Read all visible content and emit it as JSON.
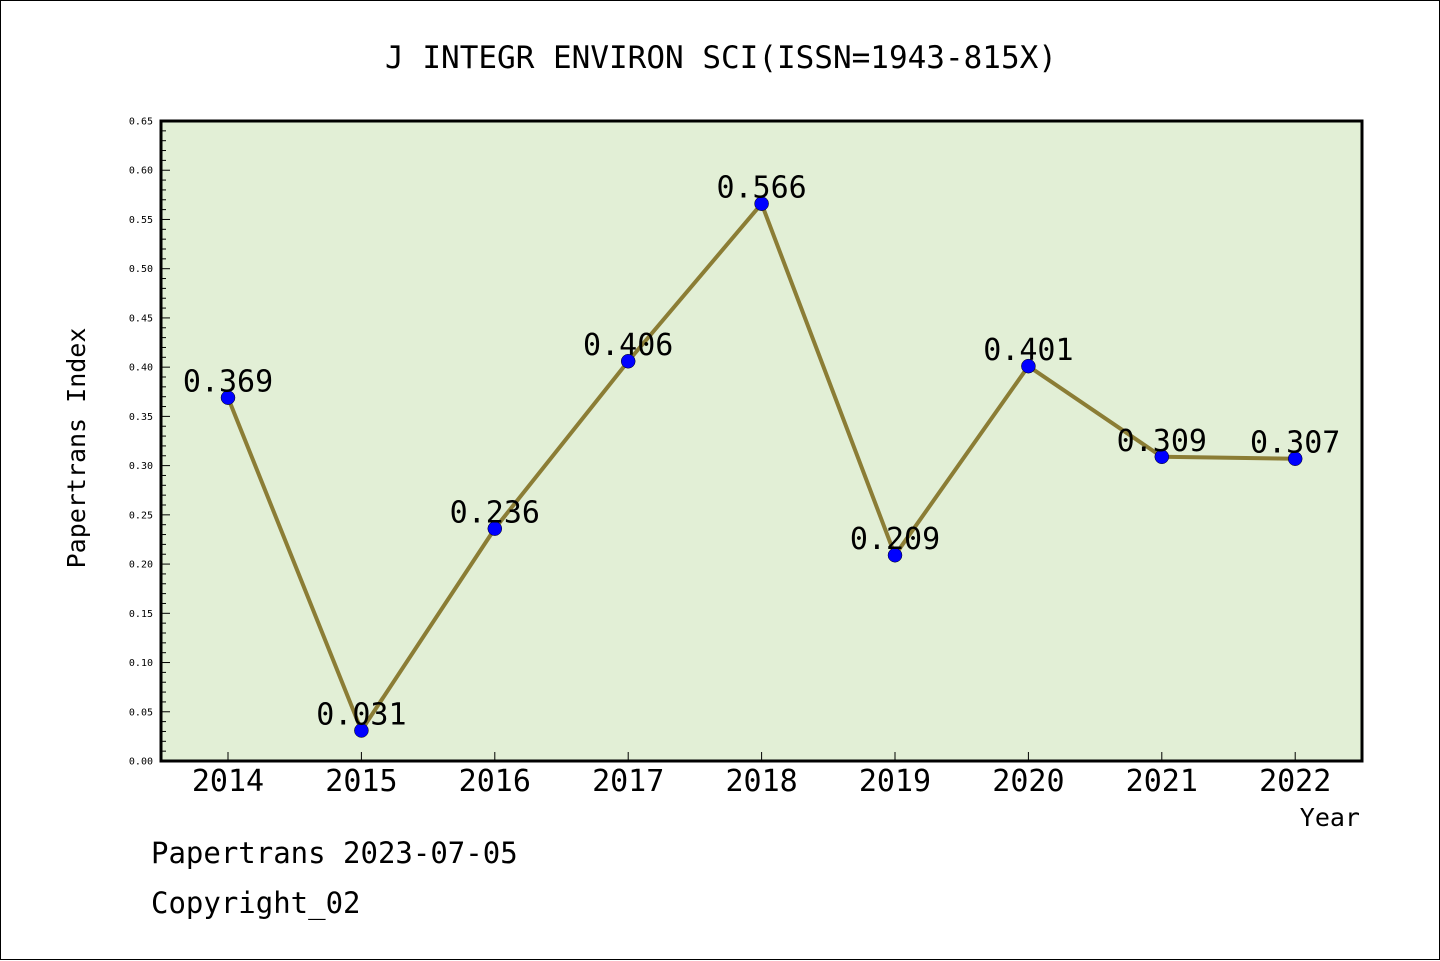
{
  "chart_data": {
    "type": "line",
    "title": "J INTEGR ENVIRON SCI(ISSN=1943-815X)",
    "xlabel": "Year",
    "ylabel": "Papertrans Index",
    "categories": [
      "2014",
      "2015",
      "2016",
      "2017",
      "2018",
      "2019",
      "2020",
      "2021",
      "2022"
    ],
    "values": [
      0.369,
      0.031,
      0.236,
      0.406,
      0.566,
      0.209,
      0.401,
      0.309,
      0.307
    ],
    "value_labels": [
      "0.369",
      "0.031",
      "0.236",
      "0.406",
      "0.566",
      "0.209",
      "0.401",
      "0.309",
      "0.307"
    ],
    "ylim": [
      0,
      0.65
    ],
    "yticks": [
      "0.00",
      "0.05",
      "0.10",
      "0.15",
      "0.20",
      "0.25",
      "0.30",
      "0.35",
      "0.40",
      "0.45",
      "0.50",
      "0.55",
      "0.60",
      "0.65"
    ],
    "grid": false,
    "colors": {
      "plot_background": "#e2efd6",
      "line": "#8b7d35",
      "marker": "#0000ff"
    }
  },
  "footer": {
    "date_line": "Papertrans 2023-07-05",
    "copyright_line": "Copyright_02"
  }
}
